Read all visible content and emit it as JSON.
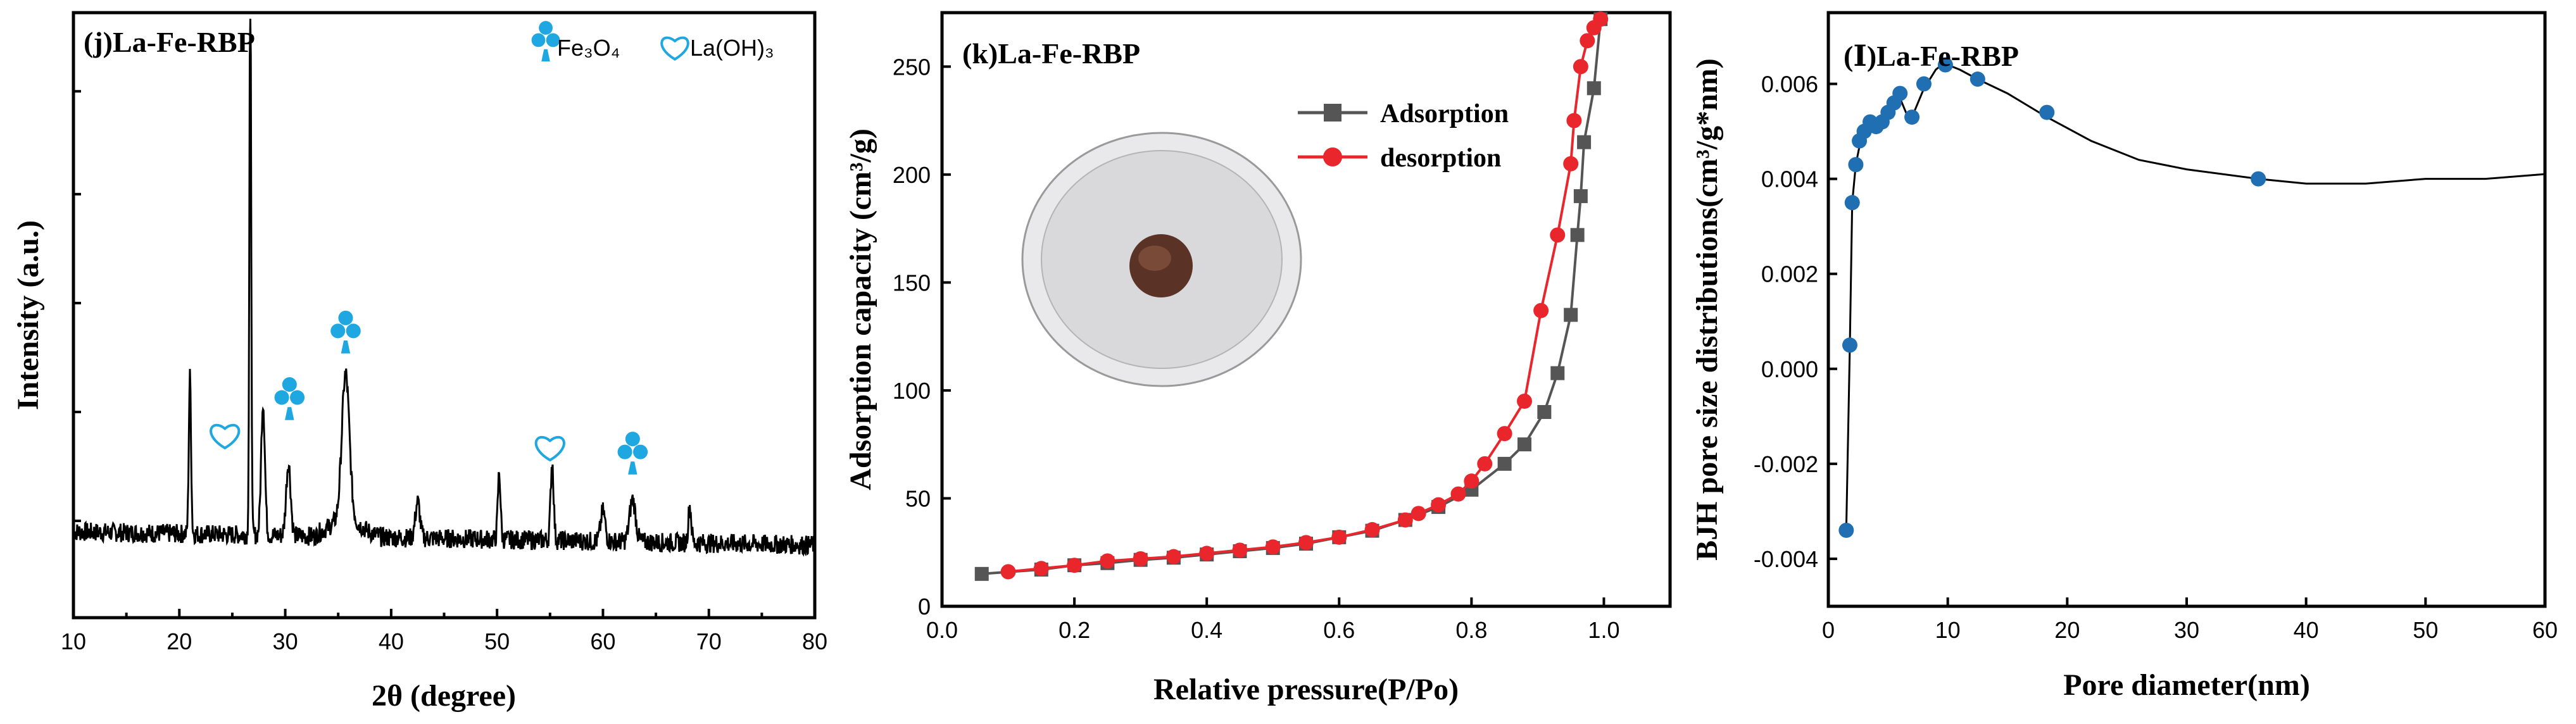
{
  "colors": {
    "accent_blue": "#1EA7E0",
    "adsorption": "#555555",
    "desorption": "#E8262B",
    "bjh": "#1F6FB2"
  },
  "chart_data": [
    {
      "type": "line",
      "title": "(j)La-Fe-RBP",
      "xlabel": "2θ (degree)",
      "ylabel": "Intensity (a.u.)",
      "xlim": [
        10,
        80
      ],
      "ylim": [
        0,
        100
      ],
      "xticks": [
        10,
        20,
        30,
        40,
        50,
        60,
        70,
        80
      ],
      "legend": [
        {
          "symbol": "club",
          "label": "Fe₃O₄"
        },
        {
          "symbol": "heart",
          "label": "La(OH)₃"
        }
      ],
      "peaks": [
        {
          "pos": 21.0,
          "height": 26,
          "width": 0.15
        },
        {
          "pos": 26.7,
          "height": 93,
          "width": 0.12
        },
        {
          "pos": 27.9,
          "height": 22,
          "width": 0.25
        },
        {
          "pos": 30.3,
          "height": 12,
          "width": 0.3
        },
        {
          "pos": 35.7,
          "height": 24,
          "width": 0.5
        },
        {
          "pos": 42.5,
          "height": 6,
          "width": 0.3
        },
        {
          "pos": 50.2,
          "height": 11,
          "width": 0.18
        },
        {
          "pos": 55.2,
          "height": 13,
          "width": 0.2
        },
        {
          "pos": 60.0,
          "height": 5,
          "width": 0.3
        },
        {
          "pos": 62.8,
          "height": 7,
          "width": 0.4
        },
        {
          "pos": 68.2,
          "height": 6,
          "width": 0.2
        }
      ],
      "markers": [
        {
          "symbol": "heart",
          "x": 24.3,
          "y": 30
        },
        {
          "symbol": "club",
          "x": 30.4,
          "y": 35
        },
        {
          "symbol": "club",
          "x": 35.7,
          "y": 46
        },
        {
          "symbol": "heart",
          "x": 55.0,
          "y": 28
        },
        {
          "symbol": "club",
          "x": 62.8,
          "y": 26
        }
      ]
    },
    {
      "type": "line",
      "title": "(k)La-Fe-RBP",
      "xlabel": "Relative pressure(P/Po)",
      "ylabel": "Adsorption capacity (cm³/g)",
      "xlim": [
        0.0,
        1.1
      ],
      "ylim": [
        0,
        275
      ],
      "xticks": [
        0.0,
        0.2,
        0.4,
        0.6,
        0.8,
        1.0
      ],
      "yticks": [
        0,
        50,
        100,
        150,
        200,
        250
      ],
      "series": [
        {
          "name": "Adsorption",
          "marker": "square",
          "x": [
            0.06,
            0.15,
            0.2,
            0.25,
            0.3,
            0.35,
            0.4,
            0.45,
            0.5,
            0.55,
            0.6,
            0.65,
            0.7,
            0.75,
            0.8,
            0.85,
            0.88,
            0.91,
            0.93,
            0.95,
            0.96,
            0.965,
            0.97,
            0.985,
            0.995
          ],
          "y": [
            15,
            17,
            19,
            20,
            21.5,
            22.5,
            24,
            25.5,
            27,
            29,
            32,
            35,
            40,
            46,
            54,
            66,
            75,
            90,
            108,
            135,
            172,
            190,
            215,
            240,
            272
          ]
        },
        {
          "name": "desorption",
          "marker": "circle",
          "x": [
            0.995,
            0.985,
            0.975,
            0.965,
            0.955,
            0.95,
            0.93,
            0.905,
            0.88,
            0.85,
            0.82,
            0.8,
            0.78,
            0.75,
            0.72,
            0.7,
            0.65,
            0.6,
            0.55,
            0.5,
            0.45,
            0.4,
            0.35,
            0.3,
            0.25,
            0.2,
            0.15,
            0.1
          ],
          "y": [
            272,
            268,
            262,
            250,
            225,
            205,
            172,
            137,
            95,
            80,
            66,
            58,
            52,
            47,
            43,
            40,
            35.5,
            32,
            29.5,
            27.5,
            26,
            24.5,
            23,
            22,
            21,
            19,
            17.5,
            16
          ]
        }
      ]
    },
    {
      "type": "line",
      "title": "(Ⅰ)La-Fe-RBP",
      "xlabel": "Pore diameter(nm)",
      "ylabel": "BJH pore size distributions(cm³/g*nm)",
      "xlim": [
        0,
        60
      ],
      "ylim": [
        -0.005,
        0.0075
      ],
      "xticks": [
        0,
        10,
        20,
        30,
        40,
        50,
        60
      ],
      "yticks": [
        -0.004,
        -0.002,
        0.0,
        0.002,
        0.004,
        0.006
      ],
      "yticklabels": [
        "-0.004",
        "-0.002",
        "0.000",
        "0.002",
        "0.004",
        "0.006"
      ],
      "curve": {
        "x": [
          1.5,
          1.8,
          2.0,
          2.3,
          2.7,
          3.0,
          3.5,
          4.0,
          4.5,
          5.0,
          5.5,
          6.0,
          6.5,
          7.0,
          7.5,
          8.0,
          8.5,
          9.0,
          9.5,
          10.0,
          11.0,
          12.5,
          15.0,
          18.3,
          22.0,
          26.0,
          30.0,
          36.0,
          40.0,
          45.0,
          50.0,
          55.0,
          60.0
        ],
        "y": [
          -0.0034,
          0.0005,
          0.0035,
          0.0043,
          0.0048,
          0.005,
          0.0052,
          0.0051,
          0.0052,
          0.0054,
          0.0056,
          0.0057,
          0.0054,
          0.0053,
          0.0056,
          0.0059,
          0.0061,
          0.0063,
          0.0064,
          0.0064,
          0.0063,
          0.0061,
          0.0058,
          0.0053,
          0.0048,
          0.0044,
          0.0042,
          0.004,
          0.0039,
          0.0039,
          0.004,
          0.004,
          0.0041
        ]
      },
      "points": {
        "x": [
          1.5,
          1.8,
          2.0,
          2.3,
          2.6,
          3.0,
          3.5,
          4.0,
          4.5,
          5.0,
          5.5,
          6.0,
          7.0,
          8.0,
          9.8,
          12.5,
          18.3,
          36.0
        ],
        "y": [
          -0.0034,
          0.0005,
          0.0035,
          0.0043,
          0.0048,
          0.005,
          0.0052,
          0.0051,
          0.0052,
          0.0054,
          0.0056,
          0.0058,
          0.0053,
          0.006,
          0.0064,
          0.0061,
          0.0054,
          0.004
        ]
      }
    }
  ]
}
